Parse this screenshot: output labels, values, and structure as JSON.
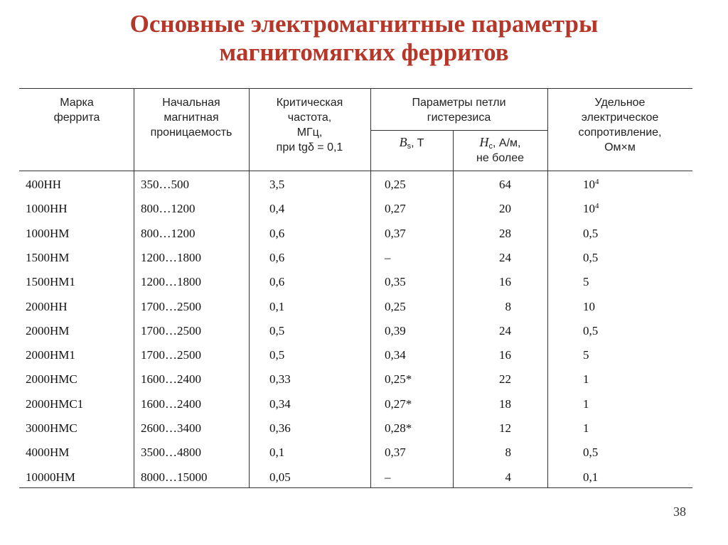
{
  "title": {
    "line1": "Основные электромагнитные параметры",
    "line2": "магнитомягких ферритов"
  },
  "headers": {
    "grade": [
      "Марка",
      "феррита"
    ],
    "permeability": [
      "Начальная",
      "магнитная",
      "проницаемость"
    ],
    "frequency": [
      "Критическая",
      "частота,",
      "МГц,",
      "при tgδ = 0,1"
    ],
    "loop": [
      "Параметры петли",
      "гистерезиса"
    ],
    "bs_symbol": "B",
    "bs_sub": "s",
    "bs_unit": ", T",
    "hc_symbol": "H",
    "hc_sub": "c",
    "hc_unit": ", А/м,",
    "hc_note": "не более",
    "resistivity": [
      "Удельное",
      "электрическое",
      "сопротивление,",
      "Ом×м"
    ]
  },
  "rows": [
    {
      "grade": "400НН",
      "mu": "350…500",
      "freq": "3,5",
      "bs": "0,25",
      "hc": "64",
      "rho_base": "10",
      "rho_exp": "4"
    },
    {
      "grade": "1000НН",
      "mu": "800…1200",
      "freq": "0,4",
      "bs": "0,27",
      "hc": "20",
      "rho_base": "10",
      "rho_exp": "4"
    },
    {
      "grade": "1000НМ",
      "mu": "800…1200",
      "freq": "0,6",
      "bs": "0,37",
      "hc": "28",
      "rho_base": "0,5",
      "rho_exp": ""
    },
    {
      "grade": "1500НМ",
      "mu": "1200…1800",
      "freq": "0,6",
      "bs": "–",
      "hc": "24",
      "rho_base": "0,5",
      "rho_exp": ""
    },
    {
      "grade": "1500НМ1",
      "mu": "1200…1800",
      "freq": "0,6",
      "bs": "0,35",
      "hc": "16",
      "rho_base": "5",
      "rho_exp": ""
    },
    {
      "grade": "2000НН",
      "mu": "1700…2500",
      "freq": "0,1",
      "bs": "0,25",
      "hc": "8",
      "rho_base": "10",
      "rho_exp": ""
    },
    {
      "grade": "2000НМ",
      "mu": "1700…2500",
      "freq": "0,5",
      "bs": "0,39",
      "hc": "24",
      "rho_base": "0,5",
      "rho_exp": ""
    },
    {
      "grade": "2000НМ1",
      "mu": "1700…2500",
      "freq": "0,5",
      "bs": "0,34",
      "hc": "16",
      "rho_base": "5",
      "rho_exp": ""
    },
    {
      "grade": "2000НМС",
      "mu": "1600…2400",
      "freq": "0,33",
      "bs": "0,25*",
      "hc": "22",
      "rho_base": "1",
      "rho_exp": ""
    },
    {
      "grade": "2000НМС1",
      "mu": "1600…2400",
      "freq": "0,34",
      "bs": "0,27*",
      "hc": "18",
      "rho_base": "1",
      "rho_exp": ""
    },
    {
      "grade": "3000НМС",
      "mu": "2600…3400",
      "freq": "0,36",
      "bs": "0,28*",
      "hc": "12",
      "rho_base": "1",
      "rho_exp": ""
    },
    {
      "grade": "4000НМ",
      "mu": "3500…4800",
      "freq": "0,1",
      "bs": "0,37",
      "hc": "8",
      "rho_base": "0,5",
      "rho_exp": ""
    },
    {
      "grade": "10000НМ",
      "mu": "8000…15000",
      "freq": "0,05",
      "bs": "–",
      "hc": "4",
      "rho_base": "0,1",
      "rho_exp": ""
    }
  ],
  "page_number": "38"
}
